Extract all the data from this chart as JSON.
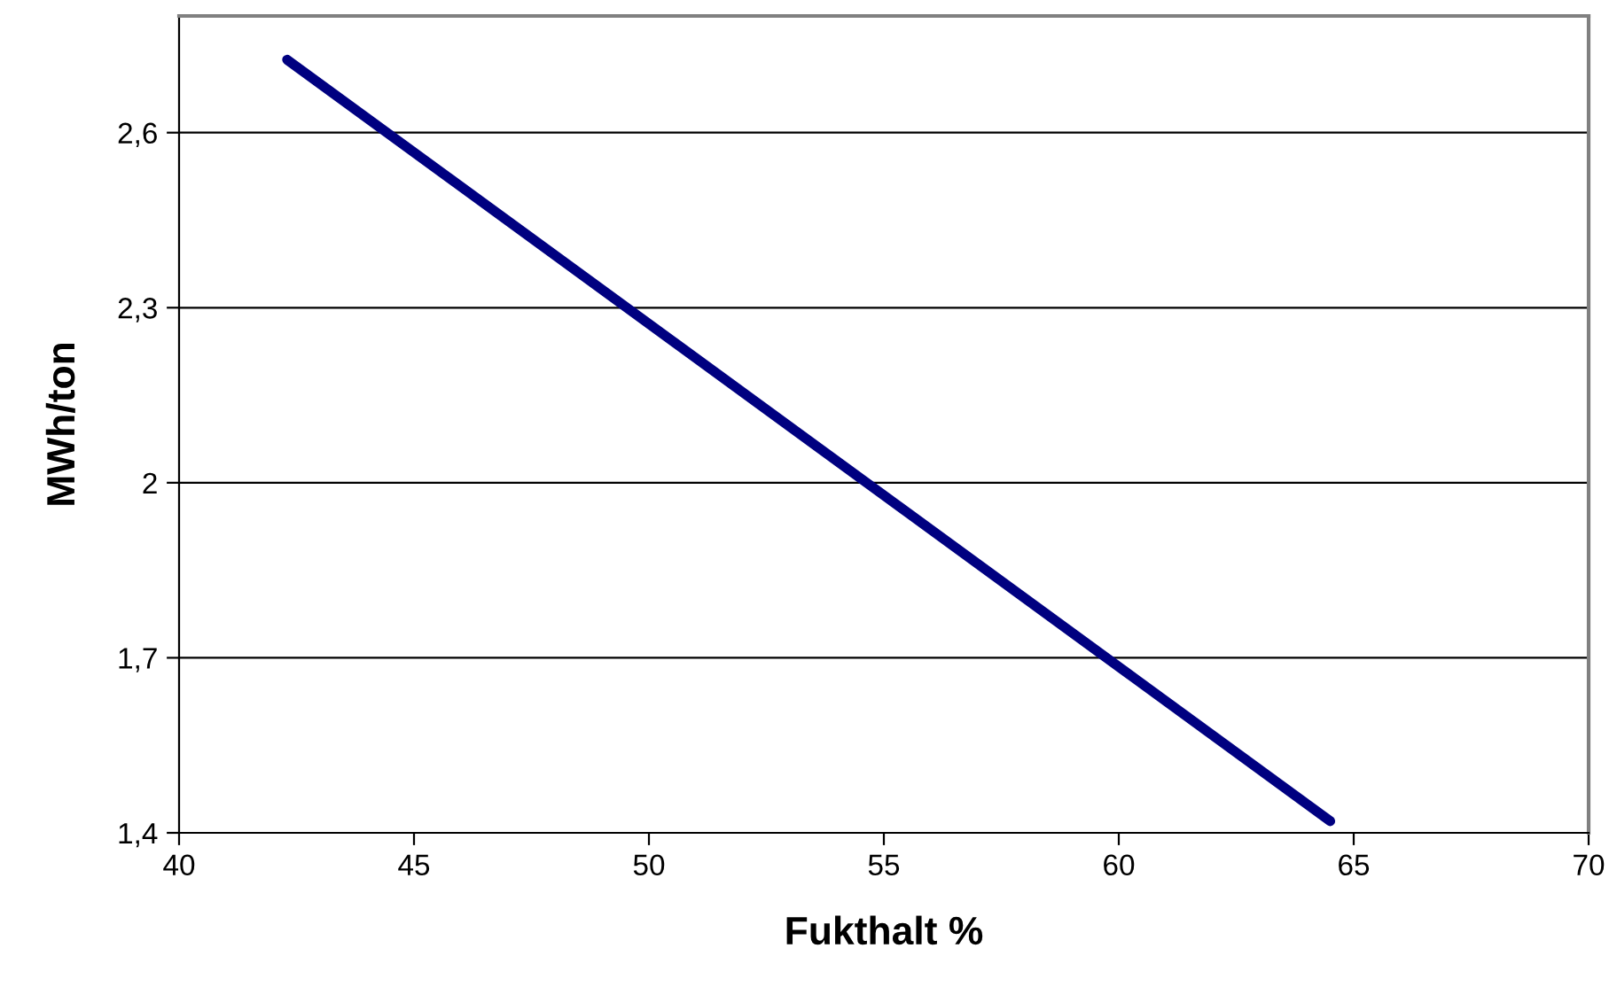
{
  "chart_data": {
    "type": "line",
    "xlabel": "Fukthalt %",
    "ylabel": "MWh/ton",
    "x": [
      42.3,
      64.5
    ],
    "series": [
      {
        "color": "#000080",
        "values": [
          2.725,
          1.42
        ]
      }
    ],
    "xlim": [
      40,
      70
    ],
    "xticks": [
      40,
      45,
      50,
      55,
      60,
      65,
      70
    ],
    "ylim": [
      1.4,
      2.8
    ],
    "yticks": [
      {
        "value": 1.4,
        "label": "1,4"
      },
      {
        "value": 1.7,
        "label": "1,7"
      },
      {
        "value": 2,
        "label": "2"
      },
      {
        "value": 2.3,
        "label": "2,3"
      },
      {
        "value": 2.6,
        "label": "2,6"
      }
    ],
    "grid": "y",
    "marker": "none",
    "line_style": "solid"
  }
}
